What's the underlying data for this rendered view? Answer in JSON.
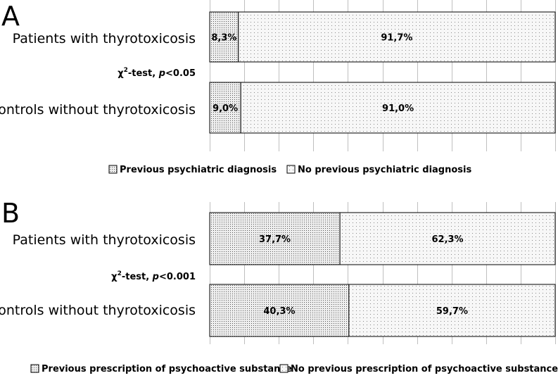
{
  "chart_data": [
    {
      "type": "bar",
      "orientation": "horizontal",
      "stacked": "percent",
      "panel_label": "A",
      "categories": [
        "Patients with thyrotoxicosis",
        "Controls without thyrotoxicosis"
      ],
      "value_labels": [
        [
          "8,3%",
          "91,7%"
        ],
        [
          "9,0%",
          "91,0%"
        ]
      ],
      "series": [
        {
          "name": "Previous psychiatric diagnosis",
          "values": [
            8.3,
            9.0
          ],
          "pattern": "dense-dots"
        },
        {
          "name": "No previous psychiatric diagnosis",
          "values": [
            91.7,
            91.0
          ],
          "pattern": "sparse-dots"
        }
      ],
      "annotation": {
        "chi": "χ",
        "sup": "2",
        "mid": "-test, ",
        "p": "p",
        "rest": "<0.05"
      },
      "xlim": [
        0,
        100
      ],
      "grid": true,
      "legend": "bottom"
    },
    {
      "type": "bar",
      "orientation": "horizontal",
      "stacked": "percent",
      "panel_label": "B",
      "categories": [
        "Patients with thyrotoxicosis",
        "Controls without thyrotoxicosis"
      ],
      "value_labels": [
        [
          "37,7%",
          "62,3%"
        ],
        [
          "40,3%",
          "59,7%"
        ]
      ],
      "series": [
        {
          "name": "Previous prescription of psychoactive substance",
          "values": [
            37.7,
            40.3
          ],
          "pattern": "dense-dots"
        },
        {
          "name": "No previous prescription of psychoactive substance",
          "values": [
            62.3,
            59.7
          ],
          "pattern": "sparse-dots"
        }
      ],
      "annotation": {
        "chi": "χ",
        "sup": "2",
        "mid": "-test, ",
        "p": "p",
        "rest": "<0.001"
      },
      "xlim": [
        0,
        100
      ],
      "grid": true,
      "legend": "bottom"
    }
  ]
}
